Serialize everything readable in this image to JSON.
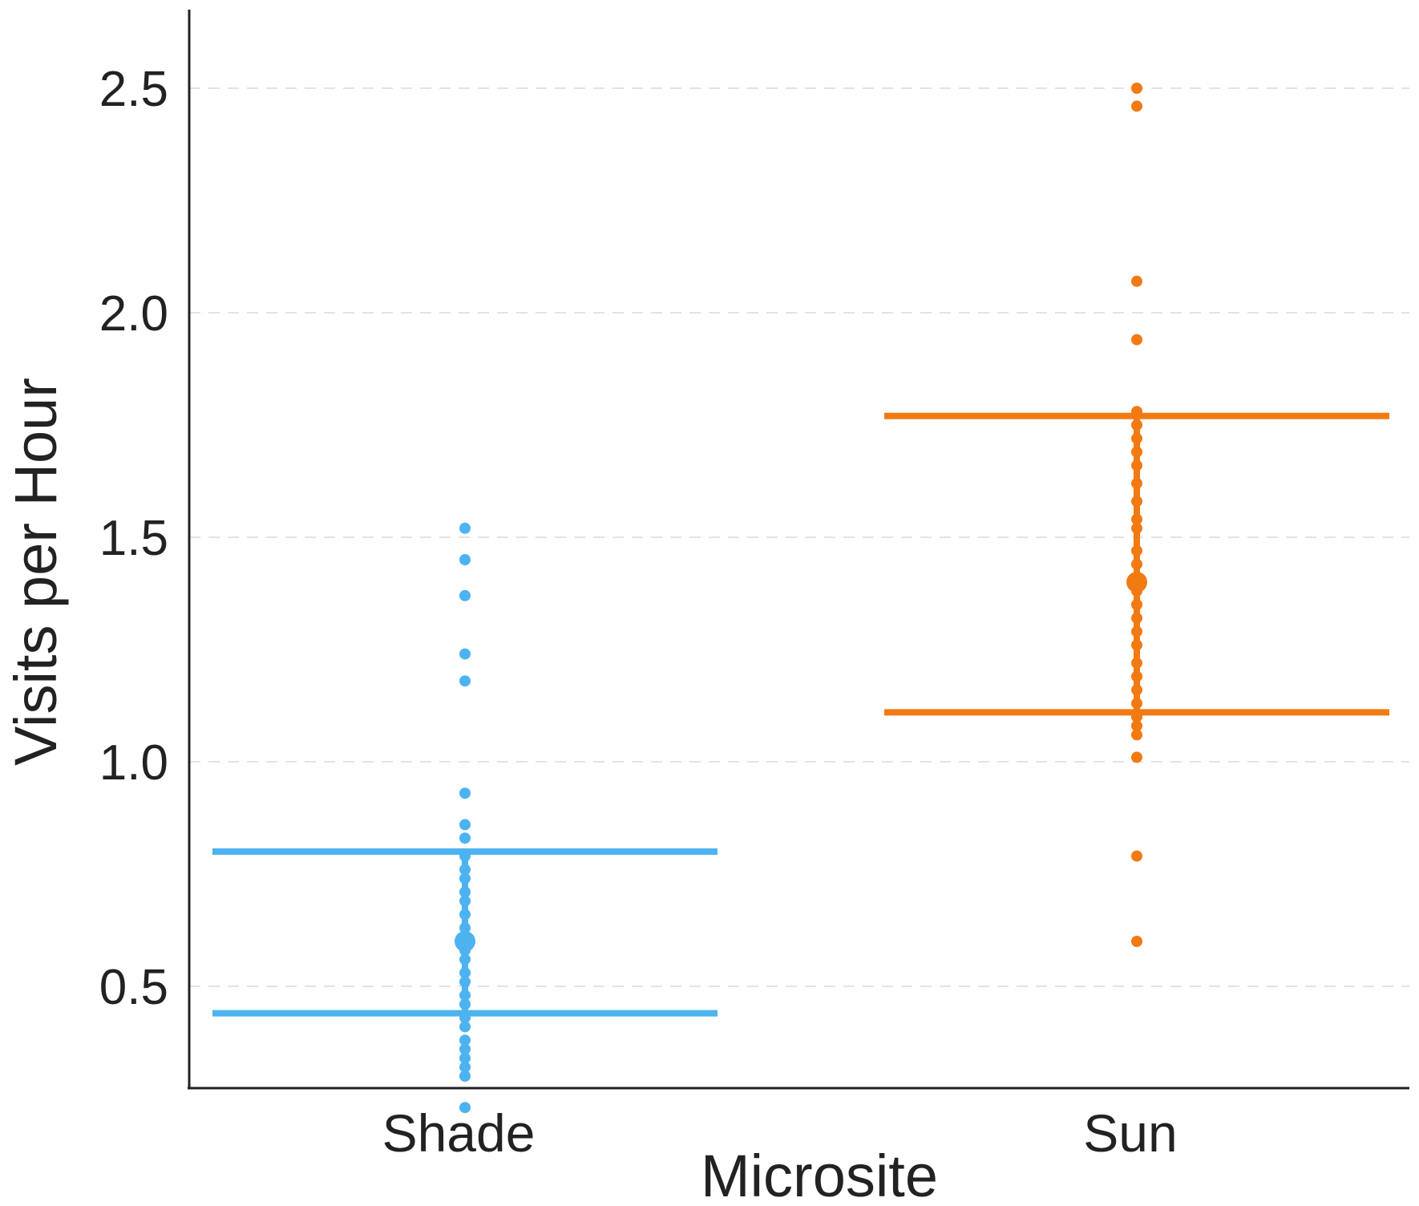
{
  "chart_data": {
    "type": "scatter",
    "xlabel": "Microsite",
    "ylabel": "Visits per Hour",
    "categories": [
      "Shade",
      "Sun"
    ],
    "ylim": [
      0.2,
      2.55
    ],
    "yticks": [
      0.5,
      1.0,
      1.5,
      2.0,
      2.5
    ],
    "ytick_labels": [
      "0.5",
      "1.0",
      "1.5",
      "2.0",
      "2.5"
    ],
    "grid": "horizontal-dashed",
    "series": [
      {
        "category": "Shade",
        "color": "#4db3f0",
        "points": [
          1.52,
          1.45,
          1.37,
          1.24,
          1.18,
          0.93,
          0.86,
          0.83,
          0.79,
          0.76,
          0.74,
          0.71,
          0.69,
          0.66,
          0.63,
          0.61,
          0.58,
          0.56,
          0.53,
          0.51,
          0.48,
          0.46,
          0.43,
          0.41,
          0.38,
          0.36,
          0.34,
          0.32,
          0.3,
          0.23
        ],
        "mean": 0.6,
        "ci_lower": 0.44,
        "ci_upper": 0.8
      },
      {
        "category": "Sun",
        "color": "#f27a12",
        "points": [
          2.5,
          2.46,
          2.07,
          1.94,
          1.78,
          1.75,
          1.72,
          1.69,
          1.66,
          1.62,
          1.58,
          1.54,
          1.52,
          1.47,
          1.44,
          1.41,
          1.38,
          1.35,
          1.32,
          1.29,
          1.26,
          1.22,
          1.19,
          1.16,
          1.13,
          1.1,
          1.08,
          1.06,
          1.01,
          0.79,
          0.6
        ],
        "mean": 1.4,
        "ci_lower": 1.11,
        "ci_upper": 1.77
      }
    ]
  }
}
